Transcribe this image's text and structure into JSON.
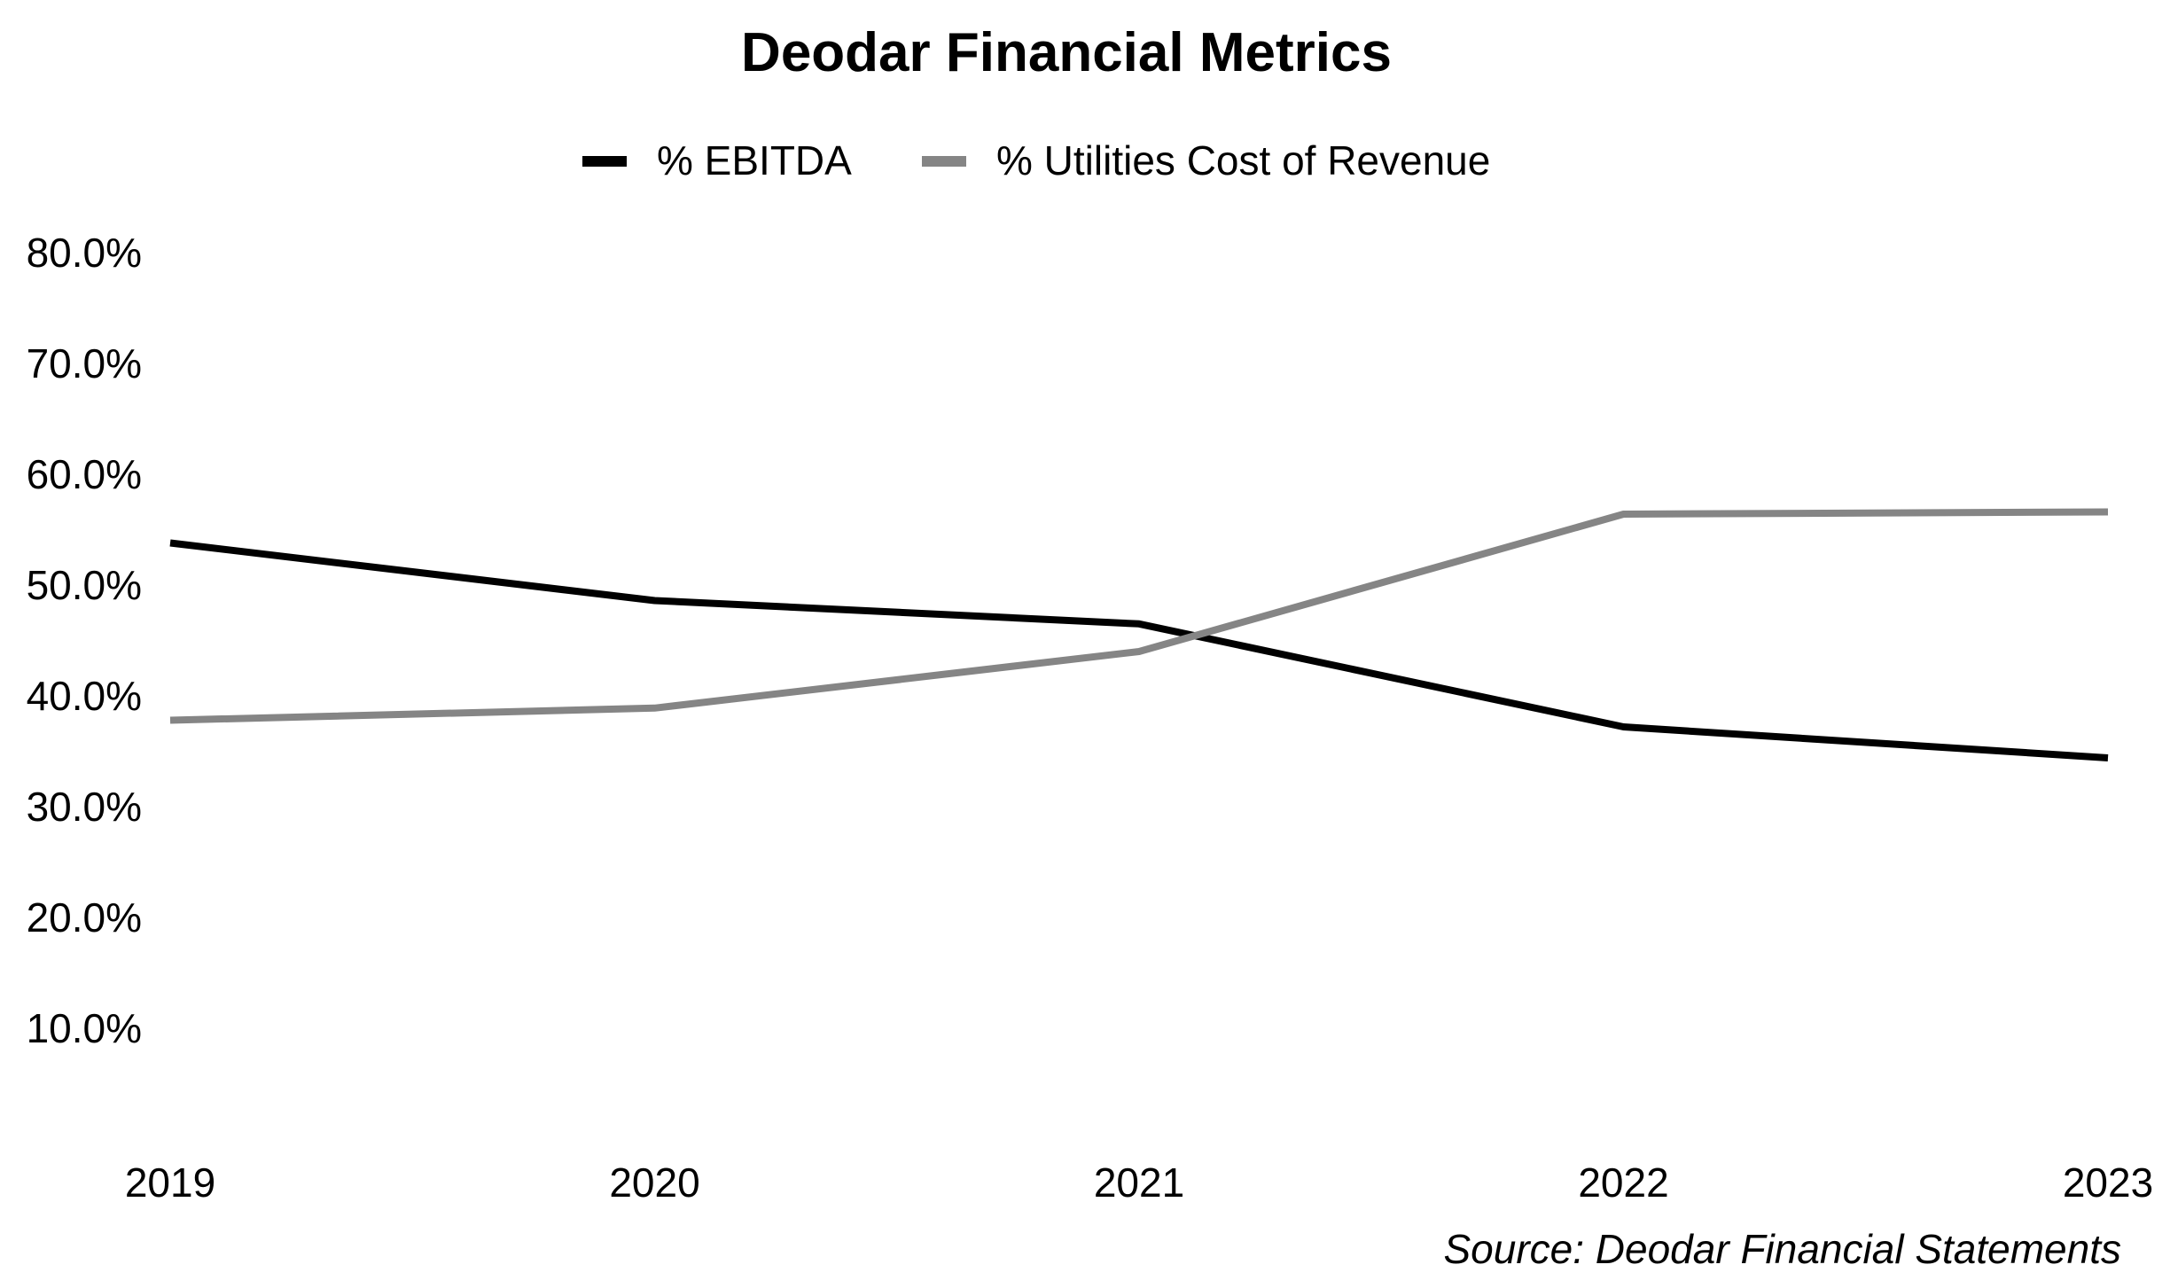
{
  "chart_data": {
    "type": "line",
    "title": "Deodar Financial Metrics",
    "xlabel": "",
    "ylabel": "",
    "categories": [
      "2019",
      "2020",
      "2021",
      "2022",
      "2023"
    ],
    "series": [
      {
        "name": "% EBITDA",
        "color": "#000000",
        "values": [
          53.8,
          48.6,
          46.5,
          37.2,
          34.4
        ]
      },
      {
        "name": "% Utilities Cost of Revenue",
        "color": "#858585",
        "values": [
          37.8,
          38.9,
          44.0,
          56.4,
          56.6
        ]
      }
    ],
    "yticks": [
      10,
      20,
      30,
      40,
      50,
      60,
      70,
      80
    ],
    "ytick_labels": [
      "10.0%",
      "20.0%",
      "30.0%",
      "40.0%",
      "50.0%",
      "60.0%",
      "70.0%",
      "80.0%"
    ],
    "ylim": [
      0,
      80
    ],
    "grid": false,
    "legend_position": "top-center",
    "source": "Source: Deodar Financial Statements"
  }
}
